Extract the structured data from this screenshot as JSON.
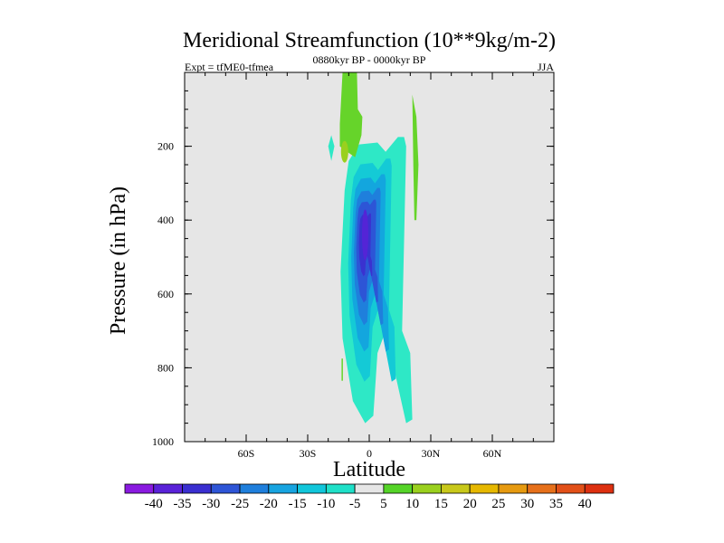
{
  "chart_data": {
    "type": "contour",
    "title": "Meridional Streamfunction (10**9kg/m-2)",
    "subtitle_center": "0880kyr BP - 0000kyr BP",
    "subtitle_left": "Expt = tfME0-tfmea",
    "subtitle_right": "JJA",
    "xlabel": "Latitude",
    "ylabel": "Pressure (in hPa)",
    "xlim": [
      -90,
      90
    ],
    "ylim": [
      1000,
      0
    ],
    "x_ticks": [
      {
        "value": -60,
        "label": "60S"
      },
      {
        "value": -30,
        "label": "30S"
      },
      {
        "value": 0,
        "label": "0"
      },
      {
        "value": 30,
        "label": "30N"
      },
      {
        "value": 60,
        "label": "60N"
      }
    ],
    "y_ticks": [
      {
        "value": 200,
        "label": "200"
      },
      {
        "value": 400,
        "label": "400"
      },
      {
        "value": 600,
        "label": "600"
      },
      {
        "value": 800,
        "label": "800"
      },
      {
        "value": 1000,
        "label": "1000"
      }
    ],
    "colorbar": {
      "labels": [
        "-40",
        "-35",
        "-30",
        "-25",
        "-20",
        "-15",
        "-10",
        "-5",
        "5",
        "10",
        "15",
        "20",
        "25",
        "30",
        "35",
        "40"
      ],
      "colors": [
        "#8a1ae0",
        "#5a22d8",
        "#3a2fd0",
        "#2e55d6",
        "#1f7fdc",
        "#17a4e0",
        "#11c6da",
        "#1fe0c8",
        "#e6e6e6",
        "#55d428",
        "#9ad01e",
        "#c8c81a",
        "#e6b800",
        "#e69a10",
        "#e6701a",
        "#e25018",
        "#dd3010"
      ]
    },
    "contours": [
      {
        "level": "-10 to -5",
        "color": "#2ee8c6",
        "name": "contour-neg-5",
        "shape": "main",
        "scale": 1.0
      },
      {
        "level": "-15 to -10",
        "color": "#14cad6",
        "name": "contour-neg-10",
        "shape": "main",
        "scale": 0.78
      },
      {
        "level": "-20 to -15",
        "color": "#13a6de",
        "name": "contour-neg-15",
        "shape": "main",
        "scale": 0.62
      },
      {
        "level": "-25 to -20",
        "color": "#1f7fdc",
        "name": "contour-neg-20",
        "shape": "main",
        "scale": 0.48
      },
      {
        "level": "-30 to -25",
        "color": "#2d55d6",
        "name": "contour-neg-25",
        "shape": "main",
        "scale": 0.36
      },
      {
        "level": "-35 to -30",
        "color": "#3a32d0",
        "name": "contour-neg-30",
        "shape": "main",
        "scale": 0.22
      }
    ],
    "features": [
      {
        "type": "positive",
        "level": "5 to 10",
        "lat_min": -13,
        "lat_max": -6,
        "p_top": 0,
        "p_bot": 200
      },
      {
        "type": "positive",
        "level": "5 to 10",
        "lat_min": 20,
        "lat_max": 25,
        "p_top": 60,
        "p_bot": 400
      },
      {
        "type": "negative",
        "level": "-10 to -5",
        "lat_min": -21,
        "lat_max": -17,
        "p_top": 170,
        "p_bot": 240
      }
    ]
  }
}
